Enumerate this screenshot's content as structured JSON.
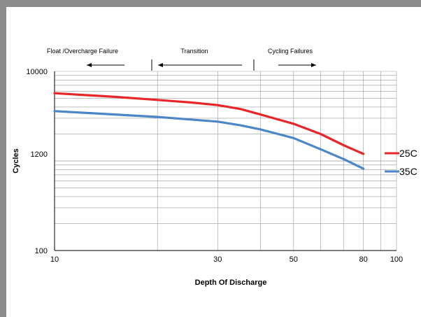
{
  "chart_data": {
    "type": "line",
    "xlabel": "Depth Of Discharge",
    "ylabel": "Cycles",
    "x_scale": "log",
    "y_scale": "log",
    "xlim": [
      10,
      100
    ],
    "ylim": [
      100,
      10000
    ],
    "x_tick_labels": [
      {
        "value": 10,
        "label": "10"
      },
      {
        "value": 30,
        "label": "30"
      },
      {
        "value": 50,
        "label": "50"
      },
      {
        "value": 80,
        "label": "80"
      },
      {
        "value": 100,
        "label": "100"
      }
    ],
    "y_tick_labels": [
      {
        "value": 100,
        "label": "100"
      },
      {
        "value": 1200,
        "label": "1200"
      },
      {
        "value": 10000,
        "label": "10000"
      }
    ],
    "grid": true,
    "series": [
      {
        "name": "25C",
        "color": "#e8262a",
        "points": [
          [
            10,
            5700
          ],
          [
            15,
            5200
          ],
          [
            20,
            4800
          ],
          [
            25,
            4500
          ],
          [
            30,
            4200
          ],
          [
            35,
            3800
          ],
          [
            40,
            3300
          ],
          [
            50,
            2600
          ],
          [
            60,
            2000
          ],
          [
            70,
            1500
          ],
          [
            80,
            1200
          ]
        ]
      },
      {
        "name": "35C",
        "color": "#4a86c8",
        "points": [
          [
            10,
            3600
          ],
          [
            15,
            3300
          ],
          [
            20,
            3100
          ],
          [
            25,
            2900
          ],
          [
            30,
            2750
          ],
          [
            35,
            2500
          ],
          [
            40,
            2250
          ],
          [
            50,
            1800
          ],
          [
            60,
            1350
          ],
          [
            70,
            1050
          ],
          [
            80,
            820
          ]
        ]
      }
    ],
    "regions": [
      {
        "label": "Float /Overcharge Failure",
        "arrow": "left"
      },
      {
        "label": "Transition",
        "arrow": "left"
      },
      {
        "label": "Cycling Failures",
        "arrow": "right"
      }
    ],
    "legend_position": "right"
  }
}
